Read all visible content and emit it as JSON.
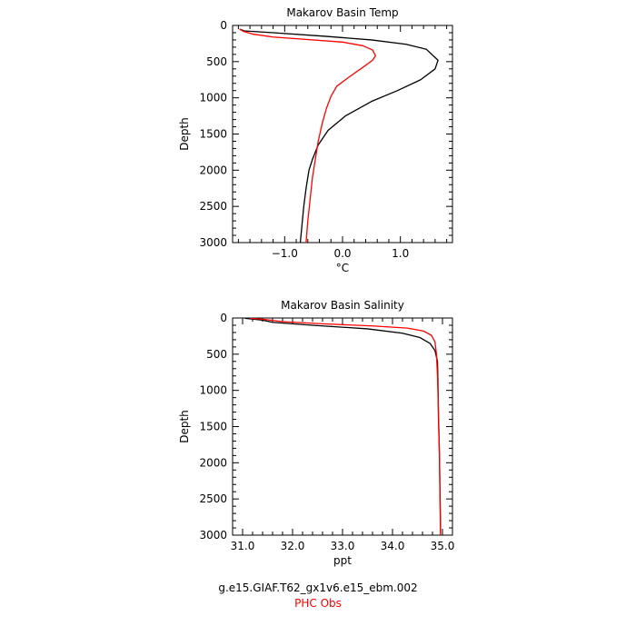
{
  "colors": {
    "model": "#000000",
    "obs": "#ff0000",
    "axis": "#000000"
  },
  "footer": {
    "model_label": "g.e15.GIAF.T62_gx1v6.e15_ebm.002",
    "obs_label": "PHC Obs"
  },
  "chart_data": [
    {
      "type": "line",
      "title": "Makarov Basin Temp",
      "xlabel": "°C",
      "ylabel": "Depth",
      "xlim": [
        -1.9,
        1.9
      ],
      "ylim": [
        3000,
        0
      ],
      "y_inverted": true,
      "xticks": [
        -1.0,
        0.0,
        1.0
      ],
      "xtick_labels": [
        "−1.0",
        "0.0",
        "1.0"
      ],
      "yticks": [
        0,
        500,
        1000,
        1500,
        2000,
        2500,
        3000
      ],
      "ytick_labels": [
        "0",
        "500",
        "1000",
        "1500",
        "2000",
        "2500",
        "3000"
      ],
      "series": [
        {
          "color": "#000000",
          "x": [
            -1.78,
            -1.7,
            -1.2,
            -0.3,
            0.5,
            1.1,
            1.45,
            1.65,
            1.6,
            1.35,
            0.95,
            0.5,
            0.05,
            -0.25,
            -0.42,
            -0.52,
            -0.58,
            -0.63,
            -0.67,
            -0.7,
            -0.73
          ],
          "y": [
            50,
            75,
            100,
            150,
            200,
            260,
            330,
            480,
            600,
            750,
            900,
            1050,
            1250,
            1450,
            1650,
            1850,
            2000,
            2250,
            2500,
            2750,
            3000
          ]
        },
        {
          "color": "#ff0000",
          "x": [
            -1.78,
            -1.72,
            -1.55,
            -1.2,
            0.0,
            0.35,
            0.52,
            0.57,
            0.52,
            0.35,
            0.1,
            -0.1,
            -0.2,
            -0.28,
            -0.35,
            -0.42,
            -0.47,
            -0.52,
            -0.56,
            -0.6,
            -0.63
          ],
          "y": [
            50,
            80,
            120,
            160,
            230,
            280,
            340,
            420,
            480,
            580,
            720,
            840,
            980,
            1150,
            1350,
            1600,
            1850,
            2100,
            2400,
            2700,
            3000
          ]
        }
      ]
    },
    {
      "type": "line",
      "title": "Makarov Basin Salinity",
      "xlabel": "ppt",
      "ylabel": "Depth",
      "xlim": [
        30.8,
        35.2
      ],
      "ylim": [
        3000,
        0
      ],
      "y_inverted": true,
      "xticks": [
        31.0,
        32.0,
        33.0,
        34.0,
        35.0
      ],
      "xtick_labels": [
        "31.0",
        "32.0",
        "33.0",
        "34.0",
        "35.0"
      ],
      "yticks": [
        0,
        500,
        1000,
        1500,
        2000,
        2500,
        3000
      ],
      "ytick_labels": [
        "0",
        "500",
        "1000",
        "1500",
        "2000",
        "2500",
        "3000"
      ],
      "series": [
        {
          "color": "#000000",
          "x": [
            31.05,
            31.4,
            31.6,
            32.4,
            33.5,
            34.2,
            34.55,
            34.75,
            34.85,
            34.9,
            34.91,
            34.92,
            34.94,
            34.95,
            34.96,
            34.96
          ],
          "y": [
            5,
            30,
            60,
            100,
            150,
            210,
            270,
            350,
            450,
            600,
            900,
            1400,
            1900,
            2400,
            2800,
            3000
          ]
        },
        {
          "color": "#ff0000",
          "x": [
            31.15,
            31.45,
            31.8,
            32.6,
            33.6,
            34.3,
            34.62,
            34.78,
            34.85,
            34.88,
            34.9,
            34.92,
            34.94,
            34.95,
            34.96
          ],
          "y": [
            5,
            20,
            50,
            80,
            110,
            140,
            180,
            240,
            330,
            500,
            800,
            1300,
            1900,
            2500,
            3000
          ]
        }
      ]
    }
  ]
}
